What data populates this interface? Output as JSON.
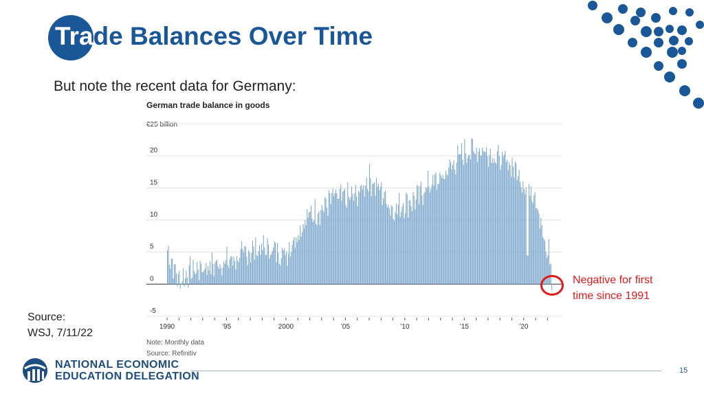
{
  "slide": {
    "title_highlight": "Tra",
    "title_rest": "de Balances Over Time",
    "subtitle": "But note the recent data for Germany:",
    "source_label": "Source:",
    "source_value": "WSJ, 7/11/22",
    "annotation_line1": "Negative for first",
    "annotation_line2": "time since 1991",
    "org_line1": "NATIONAL ECONOMIC",
    "org_line2": "EDUCATION DELEGATION",
    "page_number": "15"
  },
  "colors": {
    "brand": "#1a5799",
    "bars": "#7aa6cc",
    "annotation": "#e21a1a"
  },
  "chart_data": {
    "type": "bar",
    "title": "German trade balance in goods",
    "unit_label": "€25 billion",
    "note": "Note: Monthly data",
    "source": "Source: Refinitiv",
    "ylim": [
      -5,
      25
    ],
    "yticks": [
      "20",
      "15",
      "10",
      "5",
      "0",
      "-5"
    ],
    "xticks": [
      {
        "year": 1990,
        "label": "1990"
      },
      {
        "year": 1995,
        "label": "’95"
      },
      {
        "year": 2000,
        "label": "2000"
      },
      {
        "year": 2005,
        "label": "’05"
      },
      {
        "year": 2010,
        "label": "’10"
      },
      {
        "year": 2015,
        "label": "’15"
      },
      {
        "year": 2020,
        "label": "’20"
      }
    ],
    "x_start": 1990,
    "x_end": 2022.5,
    "frequency": "monthly",
    "annual_levels": [
      {
        "year": 1990,
        "value": 5.5
      },
      {
        "year": 1991,
        "value": 0.6
      },
      {
        "year": 1992,
        "value": 2.0
      },
      {
        "year": 1993,
        "value": 2.6
      },
      {
        "year": 1994,
        "value": 3.0
      },
      {
        "year": 1995,
        "value": 3.5
      },
      {
        "year": 1996,
        "value": 4.0
      },
      {
        "year": 1997,
        "value": 5.2
      },
      {
        "year": 1998,
        "value": 5.6
      },
      {
        "year": 1999,
        "value": 5.3
      },
      {
        "year": 2000,
        "value": 4.8
      },
      {
        "year": 2001,
        "value": 8.0
      },
      {
        "year": 2002,
        "value": 10.8
      },
      {
        "year": 2003,
        "value": 11.6
      },
      {
        "year": 2004,
        "value": 13.6
      },
      {
        "year": 2005,
        "value": 13.4
      },
      {
        "year": 2006,
        "value": 13.8
      },
      {
        "year": 2007,
        "value": 16.5
      },
      {
        "year": 2008,
        "value": 14.6
      },
      {
        "year": 2009,
        "value": 11.5
      },
      {
        "year": 2010,
        "value": 12.6
      },
      {
        "year": 2011,
        "value": 13.3
      },
      {
        "year": 2012,
        "value": 15.5
      },
      {
        "year": 2013,
        "value": 16.2
      },
      {
        "year": 2014,
        "value": 18.6
      },
      {
        "year": 2015,
        "value": 20.5
      },
      {
        "year": 2016,
        "value": 21.0
      },
      {
        "year": 2017,
        "value": 20.7
      },
      {
        "year": 2018,
        "value": 19.4
      },
      {
        "year": 2019,
        "value": 18.7
      },
      {
        "year": 2020,
        "value": 15.8
      },
      {
        "year": 2021,
        "value": 14.2
      },
      {
        "year": 2022,
        "value": 3.5
      }
    ],
    "final_months": [
      {
        "month": "2022-01",
        "value": 4.5
      },
      {
        "month": "2022-02",
        "value": 7.0
      },
      {
        "month": "2022-03",
        "value": 3.1
      },
      {
        "month": "2022-04",
        "value": 3.2
      },
      {
        "month": "2022-05",
        "value": -1.0
      }
    ],
    "grid": true
  }
}
